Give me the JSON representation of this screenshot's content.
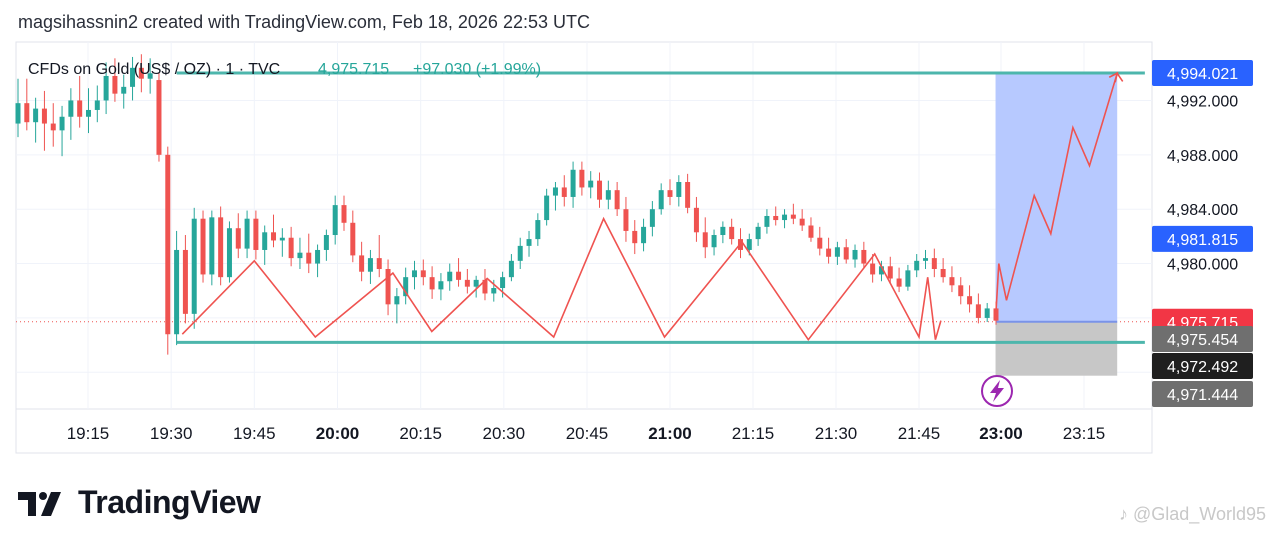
{
  "header": {
    "text": "magsihassnin2 created with TradingView.com, Feb 18, 2026 22:53 UTC"
  },
  "brand": {
    "name": "TradingView"
  },
  "watermark": {
    "text": "@Glad_World95"
  },
  "symbol": {
    "name": "CFDs on Gold (US$ / OZ) · 1 · TVC",
    "price": "4,975.715",
    "change": "+97.030 (+1.99%)"
  },
  "colors": {
    "up": "#26a69a",
    "down": "#ef5350",
    "level_line": "#4db6ac",
    "target_zone": "#b3c6ff",
    "stop_zone": "#c4c4c4",
    "path": "#ef5350",
    "current_price_label": "#f23645",
    "target_label": "#2962ff",
    "accent_purple": "#9c27b0"
  },
  "chart_data": {
    "type": "candlestick",
    "ylim": [
      4969.3,
      4996.3
    ],
    "y_ticks": [
      "4,992.000",
      "4,988.000",
      "4,984.000",
      "4,980.000"
    ],
    "x_ticks": [
      {
        "label": "19:15",
        "time": "19:15",
        "bold": false
      },
      {
        "label": "19:30",
        "time": "19:30",
        "bold": false
      },
      {
        "label": "19:45",
        "time": "19:45",
        "bold": false
      },
      {
        "label": "20:00",
        "time": "20:00",
        "bold": true
      },
      {
        "label": "20:15",
        "time": "20:15",
        "bold": false
      },
      {
        "label": "20:30",
        "time": "20:30",
        "bold": false
      },
      {
        "label": "20:45",
        "time": "20:45",
        "bold": false
      },
      {
        "label": "21:00",
        "time": "21:00",
        "bold": true
      },
      {
        "label": "21:15",
        "time": "21:15",
        "bold": false
      },
      {
        "label": "21:30",
        "time": "21:30",
        "bold": false
      },
      {
        "label": "21:45",
        "time": "21:45",
        "bold": false
      },
      {
        "label": "23:00",
        "time": "23:00",
        "bold": true
      },
      {
        "label": "23:15",
        "time": "23:15",
        "bold": false
      }
    ],
    "price_labels": [
      {
        "value": "4,994.021",
        "price": 4994.021,
        "role": "target"
      },
      {
        "value": "4,981.815",
        "price": 4981.815,
        "role": "entry"
      },
      {
        "value": "4,975.715",
        "price": 4975.715,
        "role": "current"
      },
      {
        "value": "4,975.454",
        "price": 4975.454,
        "role": "gray"
      },
      {
        "value": "4,972.492",
        "price": 4972.492,
        "role": "dark"
      },
      {
        "value": "4,971.444",
        "price": 4971.444,
        "role": "gray"
      }
    ],
    "levels": [
      {
        "name": "resistance",
        "price": 4994.021,
        "from": "19:31",
        "to": "23:26"
      },
      {
        "name": "support",
        "price": 4974.2,
        "from": "19:31",
        "to": "23:26"
      }
    ],
    "position": {
      "from": "22:55",
      "to": "23:21",
      "target": 4994.021,
      "entry": 4975.715,
      "stop": 4971.75
    },
    "zigzag": [
      [
        "19:32",
        4974.8
      ],
      [
        "19:45",
        4980.2
      ],
      [
        "19:56",
        4974.6
      ],
      [
        "20:10",
        4979.3
      ],
      [
        "20:17",
        4975.0
      ],
      [
        "20:27",
        4978.9
      ],
      [
        "20:39",
        4974.6
      ],
      [
        "20:48",
        4983.3
      ],
      [
        "20:59",
        4974.6
      ],
      [
        "21:13",
        4981.6
      ],
      [
        "21:25",
        4974.4
      ],
      [
        "21:37",
        4980.7
      ],
      [
        "21:45",
        4974.6
      ],
      [
        "21:53",
        4979.0
      ],
      [
        "22:00",
        4974.4
      ],
      [
        "22:05",
        4975.8
      ]
    ],
    "projection": [
      [
        "22:55",
        4975.8
      ],
      [
        "22:58",
        4980.0
      ],
      [
        "23:01",
        4977.3
      ],
      [
        "23:06",
        4985.0
      ],
      [
        "23:09",
        4982.2
      ],
      [
        "23:13",
        4990.0
      ],
      [
        "23:16",
        4987.2
      ],
      [
        "23:21",
        4994.0
      ],
      [
        "23:22",
        4993.4
      ]
    ],
    "candles": [
      [
        4990.3,
        4993.6,
        4989.3,
        4991.8
      ],
      [
        4991.8,
        4993.6,
        4989.8,
        4990.4
      ],
      [
        4990.4,
        4992.2,
        4988.9,
        4991.4
      ],
      [
        4991.4,
        4992.7,
        4988.3,
        4990.3
      ],
      [
        4990.3,
        4991.8,
        4988.6,
        4989.8
      ],
      [
        4989.8,
        4991.6,
        4987.9,
        4990.8
      ],
      [
        4990.8,
        4992.9,
        4989.1,
        4992.0
      ],
      [
        4992.0,
        4993.8,
        4990.0,
        4990.8
      ],
      [
        4990.8,
        4992.9,
        4989.6,
        4991.3
      ],
      [
        4991.3,
        4993.1,
        4990.4,
        4992.0
      ],
      [
        4992.0,
        4994.8,
        4991.0,
        4993.8
      ],
      [
        4993.8,
        4995.1,
        4991.9,
        4992.5
      ],
      [
        4992.5,
        4993.9,
        4991.4,
        4993.0
      ],
      [
        4993.0,
        4995.2,
        4992.0,
        4994.4
      ],
      [
        4994.4,
        4995.4,
        4992.6,
        4993.6
      ],
      [
        4993.6,
        4995.1,
        4992.5,
        4994.0
      ],
      [
        4993.5,
        4994.0,
        4987.5,
        4988.0
      ],
      [
        4988.0,
        4988.6,
        4973.3,
        4974.8
      ],
      [
        4974.8,
        4982.4,
        4974.0,
        4981.0
      ],
      [
        4981.0,
        4982.1,
        4975.6,
        4976.3
      ],
      [
        4976.3,
        4984.1,
        4975.2,
        4983.3
      ],
      [
        4983.3,
        4983.9,
        4978.6,
        4979.2
      ],
      [
        4979.2,
        4983.9,
        4978.4,
        4983.4
      ],
      [
        4983.4,
        4984.2,
        4978.4,
        4979.0
      ],
      [
        4979.0,
        4983.1,
        4978.6,
        4982.6
      ],
      [
        4982.6,
        4983.7,
        4980.4,
        4981.1
      ],
      [
        4981.1,
        4983.9,
        4980.4,
        4983.3
      ],
      [
        4983.3,
        4983.9,
        4980.3,
        4981.0
      ],
      [
        4981.0,
        4982.8,
        4979.9,
        4982.3
      ],
      [
        4982.3,
        4983.6,
        4981.2,
        4981.7
      ],
      [
        4981.7,
        4982.6,
        4980.5,
        4981.9
      ],
      [
        4981.9,
        4982.7,
        4979.8,
        4980.4
      ],
      [
        4980.4,
        4981.9,
        4979.6,
        4980.8
      ],
      [
        4980.8,
        4982.2,
        4979.3,
        4980.0
      ],
      [
        4980.0,
        4981.4,
        4979.0,
        4981.0
      ],
      [
        4981.0,
        4982.5,
        4980.2,
        4982.1
      ],
      [
        4982.1,
        4985.0,
        4981.4,
        4984.3
      ],
      [
        4984.3,
        4985.0,
        4982.4,
        4983.0
      ],
      [
        4983.0,
        4983.9,
        4980.1,
        4980.6
      ],
      [
        4980.6,
        4981.6,
        4978.7,
        4979.4
      ],
      [
        4979.4,
        4981.0,
        4978.5,
        4980.4
      ],
      [
        4980.4,
        4982.1,
        4979.0,
        4979.6
      ],
      [
        4979.6,
        4980.3,
        4976.2,
        4977.0
      ],
      [
        4977.0,
        4978.2,
        4975.6,
        4977.6
      ],
      [
        4977.6,
        4979.7,
        4977.0,
        4979.0
      ],
      [
        4979.0,
        4980.2,
        4978.1,
        4979.5
      ],
      [
        4979.5,
        4980.3,
        4978.4,
        4979.0
      ],
      [
        4979.0,
        4979.8,
        4977.4,
        4978.1
      ],
      [
        4978.1,
        4979.3,
        4977.3,
        4978.7
      ],
      [
        4978.7,
        4980.0,
        4978.0,
        4979.4
      ],
      [
        4979.4,
        4980.4,
        4978.3,
        4978.8
      ],
      [
        4978.8,
        4979.6,
        4977.8,
        4978.3
      ],
      [
        4978.3,
        4979.1,
        4977.5,
        4978.8
      ],
      [
        4978.8,
        4979.6,
        4977.3,
        4977.8
      ],
      [
        4977.8,
        4978.8,
        4977.2,
        4978.2
      ],
      [
        4978.2,
        4979.4,
        4977.5,
        4979.0
      ],
      [
        4979.0,
        4980.7,
        4978.7,
        4980.2
      ],
      [
        4980.2,
        4981.9,
        4979.6,
        4981.3
      ],
      [
        4981.3,
        4982.4,
        4980.5,
        4981.8
      ],
      [
        4981.8,
        4983.7,
        4981.3,
        4983.2
      ],
      [
        4983.2,
        4985.5,
        4982.8,
        4985.0
      ],
      [
        4985.0,
        4986.0,
        4983.9,
        4985.6
      ],
      [
        4985.6,
        4986.5,
        4984.2,
        4984.9
      ],
      [
        4984.9,
        4987.5,
        4984.1,
        4986.9
      ],
      [
        4986.9,
        4987.5,
        4985.0,
        4985.6
      ],
      [
        4985.6,
        4986.8,
        4984.8,
        4986.1
      ],
      [
        4986.1,
        4986.7,
        4984.1,
        4984.7
      ],
      [
        4984.7,
        4986.1,
        4984.0,
        4985.4
      ],
      [
        4985.4,
        4986.0,
        4983.5,
        4984.0
      ],
      [
        4984.0,
        4984.9,
        4981.6,
        4982.4
      ],
      [
        4982.4,
        4983.2,
        4980.7,
        4981.5
      ],
      [
        4981.5,
        4983.3,
        4980.9,
        4982.7
      ],
      [
        4982.7,
        4984.6,
        4982.0,
        4984.0
      ],
      [
        4984.0,
        4985.9,
        4983.6,
        4985.4
      ],
      [
        4985.4,
        4986.2,
        4984.3,
        4984.9
      ],
      [
        4984.9,
        4986.5,
        4984.2,
        4986.0
      ],
      [
        4986.0,
        4986.6,
        4983.7,
        4984.1
      ],
      [
        4984.1,
        4984.9,
        4981.6,
        4982.3
      ],
      [
        4982.3,
        4983.4,
        4980.4,
        4981.2
      ],
      [
        4981.2,
        4982.5,
        4980.6,
        4982.1
      ],
      [
        4982.1,
        4983.1,
        4981.5,
        4982.7
      ],
      [
        4982.7,
        4983.3,
        4981.4,
        4981.8
      ],
      [
        4981.8,
        4982.6,
        4980.4,
        4981.0
      ],
      [
        4981.0,
        4982.2,
        4980.6,
        4981.8
      ],
      [
        4981.8,
        4983.0,
        4981.3,
        4982.7
      ],
      [
        4982.7,
        4984.0,
        4982.2,
        4983.5
      ],
      [
        4983.5,
        4984.2,
        4982.8,
        4983.2
      ],
      [
        4983.2,
        4984.0,
        4982.6,
        4983.6
      ],
      [
        4983.6,
        4984.4,
        4982.9,
        4983.3
      ],
      [
        4983.3,
        4984.0,
        4982.4,
        4982.8
      ],
      [
        4982.8,
        4983.4,
        4981.6,
        4981.9
      ],
      [
        4981.9,
        4982.7,
        4980.6,
        4981.1
      ],
      [
        4981.1,
        4981.9,
        4980.0,
        4980.5
      ],
      [
        4980.5,
        4981.6,
        4979.9,
        4981.2
      ],
      [
        4981.2,
        4981.8,
        4980.0,
        4980.3
      ],
      [
        4980.3,
        4981.4,
        4979.7,
        4981.0
      ],
      [
        4981.0,
        4981.6,
        4979.7,
        4980.0
      ],
      [
        4980.0,
        4980.7,
        4978.6,
        4979.2
      ],
      [
        4979.2,
        4980.2,
        4978.7,
        4979.8
      ],
      [
        4979.8,
        4980.5,
        4978.5,
        4978.9
      ],
      [
        4978.9,
        4979.7,
        4977.9,
        4978.3
      ],
      [
        4978.3,
        4979.9,
        4978.0,
        4979.5
      ],
      [
        4979.5,
        4980.7,
        4979.0,
        4980.2
      ],
      [
        4980.2,
        4981.0,
        4979.6,
        4980.4
      ],
      [
        4980.4,
        4981.1,
        4979.0,
        4979.6
      ],
      [
        4979.6,
        4980.4,
        4978.6,
        4979.0
      ],
      [
        4979.0,
        4979.8,
        4977.9,
        4978.4
      ],
      [
        4978.4,
        4979.0,
        4977.0,
        4977.6
      ],
      [
        4977.6,
        4978.4,
        4976.4,
        4977.0
      ],
      [
        4977.0,
        4977.8,
        4975.6,
        4976.0
      ],
      [
        4976.0,
        4977.1,
        4975.7,
        4976.7
      ],
      [
        4976.7,
        4977.2,
        4975.5,
        4975.8
      ]
    ]
  }
}
